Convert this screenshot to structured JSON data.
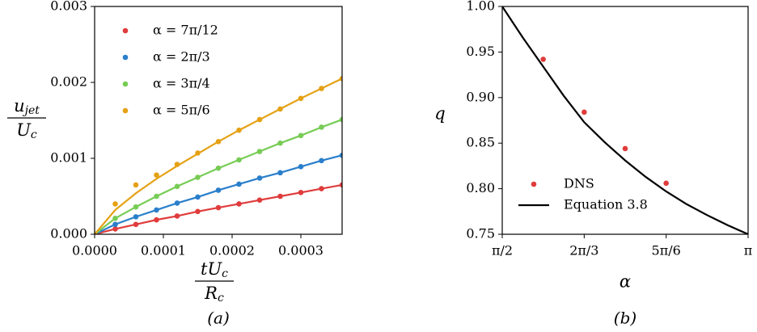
{
  "chart_data": [
    {
      "type": "scatter",
      "caption": "(a)",
      "xlabel": {
        "numerator": [
          "tU",
          "c"
        ],
        "denominator": [
          "R",
          "c"
        ]
      },
      "ylabel": {
        "numerator": [
          "u",
          "jet"
        ],
        "denominator": [
          "U",
          "c"
        ]
      },
      "xlim": [
        0,
        0.00036
      ],
      "ylim": [
        0,
        0.003
      ],
      "xticks": [
        {
          "value": 0,
          "label": "0.0000"
        },
        {
          "value": 0.0001,
          "label": "0.0001"
        },
        {
          "value": 0.0002,
          "label": "0.0002"
        },
        {
          "value": 0.0003,
          "label": "0.0003"
        }
      ],
      "yticks": [
        {
          "value": 0,
          "label": "0.000"
        },
        {
          "value": 0.001,
          "label": "0.001"
        },
        {
          "value": 0.002,
          "label": "0.002"
        },
        {
          "value": 0.003,
          "label": "0.003"
        }
      ],
      "legend": "upper left",
      "x": [
        0,
        3e-05,
        6e-05,
        9e-05,
        0.00012,
        0.00015,
        0.00018,
        0.00021,
        0.00024,
        0.00027,
        0.0003,
        0.00033,
        0.00036
      ],
      "series": [
        {
          "name": "α = 7π/12",
          "color": "#e03c3c",
          "values": [
            0,
            7e-05,
            0.00013,
            0.00019,
            0.00024,
            0.0003,
            0.00035,
            0.0004,
            0.00045,
            0.0005,
            0.00055,
            0.0006,
            0.00065
          ],
          "fit": [
            0,
            7e-05,
            0.00013,
            0.00019,
            0.00024,
            0.0003,
            0.00035,
            0.0004,
            0.00045,
            0.0005,
            0.00055,
            0.0006,
            0.00065
          ]
        },
        {
          "name": "α = 2π/3",
          "color": "#2a7fcb",
          "values": [
            0,
            0.00013,
            0.00023,
            0.00032,
            0.00041,
            0.00049,
            0.00058,
            0.00066,
            0.00074,
            0.00081,
            0.00089,
            0.00097,
            0.00104
          ],
          "fit": [
            0,
            0.00013,
            0.00023,
            0.00032,
            0.00041,
            0.00049,
            0.00058,
            0.00066,
            0.00074,
            0.00081,
            0.00089,
            0.00097,
            0.00104
          ]
        },
        {
          "name": "α = 3π/4",
          "color": "#77cc55",
          "values": [
            0,
            0.00021,
            0.00036,
            0.0005,
            0.00063,
            0.00075,
            0.00087,
            0.00098,
            0.00109,
            0.0012,
            0.0013,
            0.00141,
            0.00151
          ],
          "fit": [
            0,
            0.00021,
            0.00036,
            0.0005,
            0.00063,
            0.00075,
            0.00087,
            0.00098,
            0.00109,
            0.0012,
            0.0013,
            0.00141,
            0.00151
          ]
        },
        {
          "name": "α = 5π/6",
          "color": "#e5a114",
          "values": [
            0,
            0.0004,
            0.00065,
            0.00078,
            0.00092,
            0.00107,
            0.00122,
            0.00137,
            0.00151,
            0.00165,
            0.00179,
            0.00192,
            0.00205
          ],
          "fit": [
            0,
            0.00032,
            0.00054,
            0.00073,
            0.0009,
            0.00106,
            0.00122,
            0.00137,
            0.00151,
            0.00165,
            0.00179,
            0.00192,
            0.00205
          ]
        }
      ]
    },
    {
      "type": "scatter",
      "caption": "(b)",
      "xlabel": "α",
      "ylabel": "q",
      "xlim": [
        1.5708,
        3.1416
      ],
      "ylim": [
        0.75,
        1.0
      ],
      "xticks": [
        {
          "value": 1.5708,
          "label": "π/2"
        },
        {
          "value": 2.0944,
          "label": "2π/3"
        },
        {
          "value": 2.618,
          "label": "5π/6"
        },
        {
          "value": 3.1416,
          "label": "π"
        }
      ],
      "yticks": [
        0.75,
        {
          "value": 0.8,
          "label": "0.80"
        },
        0.85,
        {
          "value": 0.9,
          "label": "0.90"
        },
        0.95,
        {
          "value": 1.0,
          "label": "1.00"
        }
      ],
      "legend": "lower left",
      "series": [
        {
          "name": "DNS",
          "color": "#e03c3c",
          "style": "points",
          "x": [
            1.8326,
            2.0944,
            2.3562,
            2.618
          ],
          "values": [
            0.942,
            0.884,
            0.844,
            0.806
          ]
        },
        {
          "name": "Equation 3.8",
          "color": "#000000",
          "style": "line",
          "x": [
            1.5708,
            1.7017,
            1.8326,
            1.9635,
            2.0944,
            2.2253,
            2.3562,
            2.4871,
            2.618,
            2.7489,
            2.8798,
            3.0107,
            3.1416
          ],
          "values": [
            1.0,
            0.966,
            0.934,
            0.902,
            0.873,
            0.851,
            0.831,
            0.813,
            0.797,
            0.783,
            0.771,
            0.76,
            0.75
          ]
        }
      ]
    }
  ]
}
